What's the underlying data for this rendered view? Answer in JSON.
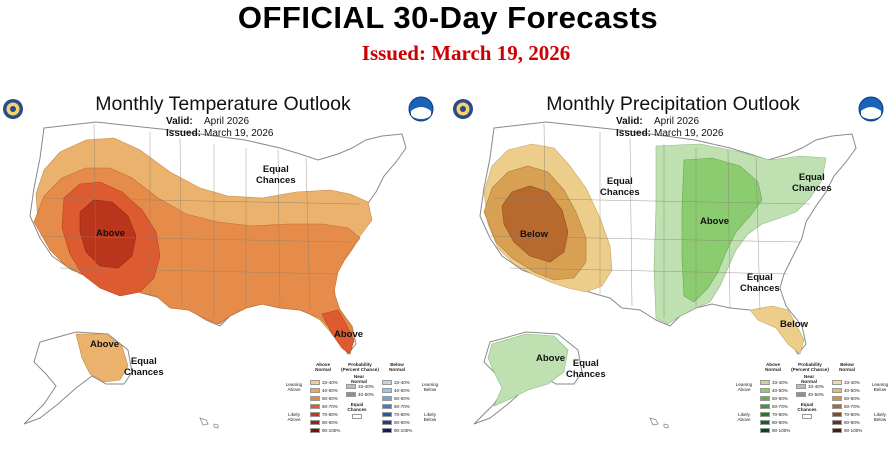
{
  "header": {
    "title": "OFFICIAL 30-Day Forecasts",
    "issued": "Issued: March 19, 2026",
    "issued_color": "#cc0000"
  },
  "panels": [
    {
      "id": "temperature",
      "title": "Monthly Temperature Outlook",
      "valid_label": "Valid:",
      "valid_value": "April 2026",
      "issued_label": "Issued:",
      "issued_value": "March 19, 2026",
      "region_labels": [
        {
          "text": "Above",
          "category": "above-normal"
        },
        {
          "text": "Equal\nChances",
          "category": "equal-chances"
        },
        {
          "text": "Above",
          "category": "above-normal"
        },
        {
          "text": "Above",
          "category": "above-normal"
        },
        {
          "text": "Equal\nChances",
          "category": "equal-chances"
        }
      ],
      "legend": {
        "header_left": "Above\nNormal",
        "header_mid": "Probability\n(Percent Chance)",
        "header_mid2": "Near\nNormal",
        "header_right": "Below\nNormal",
        "side_left_top": "Leaning\nAbove",
        "side_left_bottom": "Likely\nAbove",
        "side_right_top": "Leaning\nBelow",
        "side_right_bottom": "Likely\nBelow",
        "equal_label": "Equal\nChances",
        "ranges": [
          "33-40%",
          "40-50%",
          "50-60%",
          "60-70%",
          "70-80%",
          "80-90%",
          "90-100%"
        ],
        "near_ranges": [
          "33-40%",
          "40-50%"
        ],
        "above_colors": [
          "#f3cf8b",
          "#e9a962",
          "#e58a46",
          "#e05a2e",
          "#c23a1c",
          "#9a2414",
          "#6f1408"
        ],
        "near_colors": [
          "#bdbdbd",
          "#8f8f8f"
        ],
        "below_colors": [
          "#bcd5e8",
          "#9ec3e0",
          "#6fa6d2",
          "#3f7fc0",
          "#2856a3",
          "#1f3a8a",
          "#121b5c"
        ]
      }
    },
    {
      "id": "precipitation",
      "title": "Monthly Precipitation Outlook",
      "valid_label": "Valid:",
      "valid_value": "April 2026",
      "issued_label": "Issued:",
      "issued_value": "March 19, 2026",
      "region_labels": [
        {
          "text": "Below",
          "category": "below-normal"
        },
        {
          "text": "Equal\nChances",
          "category": "equal-chances"
        },
        {
          "text": "Above",
          "category": "above-normal"
        },
        {
          "text": "Equal\nChances",
          "category": "equal-chances"
        },
        {
          "text": "Equal\nChances",
          "category": "equal-chances"
        },
        {
          "text": "Below",
          "category": "below-normal"
        },
        {
          "text": "Above",
          "category": "above-normal"
        },
        {
          "text": "Equal\nChances",
          "category": "equal-chances"
        }
      ],
      "legend": {
        "header_left": "Above\nNormal",
        "header_mid": "Probability\n(Percent Chance)",
        "header_mid2": "Near\nNormal",
        "header_right": "Below\nNormal",
        "side_left_top": "Leaning\nAbove",
        "side_left_bottom": "Likely\nAbove",
        "side_right_top": "Leaning\nBelow",
        "side_right_bottom": "Likely\nBelow",
        "equal_label": "Equal\nChances",
        "ranges": [
          "33-40%",
          "40-50%",
          "50-60%",
          "60-70%",
          "70-80%",
          "80-90%",
          "90-100%"
        ],
        "near_ranges": [
          "33-40%",
          "40-50%"
        ],
        "above_colors": [
          "#b6dba0",
          "#8fcb74",
          "#5fb24a",
          "#3c9a35",
          "#1f7e25",
          "#136619",
          "#0a4a10"
        ],
        "near_colors": [
          "#bdbdbd",
          "#8f8f8f"
        ],
        "below_colors": [
          "#f5d9a2",
          "#e9b86a",
          "#d99440",
          "#b8672a",
          "#8e4a1c",
          "#6a3414",
          "#43200c"
        ]
      }
    }
  ],
  "colors": {
    "temp_above_33": "#eab26c",
    "temp_above_40": "#e68c4a",
    "temp_above_50": "#de5a30",
    "temp_above_60": "#b9361c",
    "precip_above_33": "#bfe0b0",
    "precip_above_40": "#8ccc70",
    "precip_below_33": "#eccd8a",
    "precip_below_40": "#d7a052",
    "precip_below_50": "#b8692e",
    "land": "#ffffff",
    "border": "#8a8a8a"
  }
}
